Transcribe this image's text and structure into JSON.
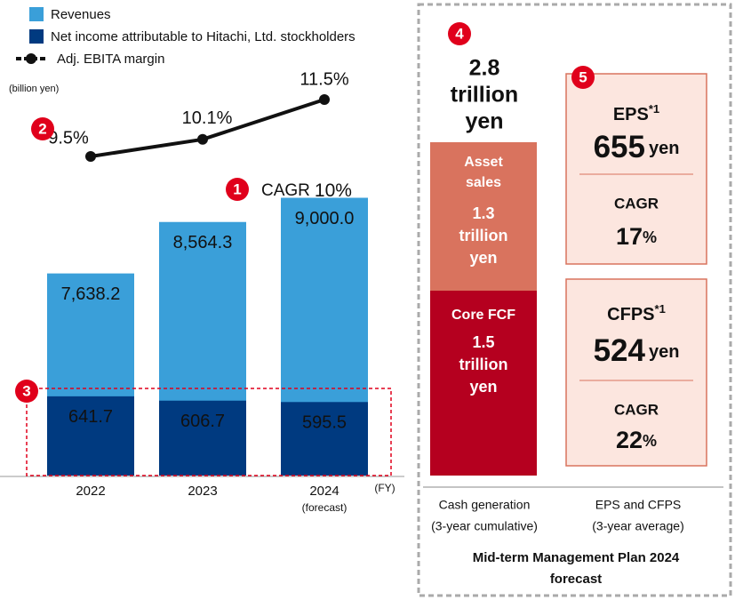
{
  "chart_data": [
    {
      "type": "bar",
      "categories": [
        "2022",
        "2023",
        "2024"
      ],
      "forecast_note": "(forecast)",
      "x_unit": "(FY)",
      "unit": "(billion yen)",
      "series": [
        {
          "name": "Revenues",
          "color": "#3a9fd9",
          "values": [
            7638.2,
            8564.3,
            9000.0
          ],
          "value_labels": [
            "7,638.2",
            "8,564.3",
            "9,000.0"
          ]
        },
        {
          "name": "Net income attributable to Hitachi, Ltd. stockholders",
          "color": "#003a80",
          "values": [
            641.7,
            606.7,
            595.5
          ],
          "axis": "y2"
        }
      ],
      "ylim": [
        4000,
        10000
      ],
      "y2lim": [
        0,
        2700
      ],
      "annotation": {
        "label": "CAGR",
        "value": "10%"
      }
    },
    {
      "type": "line",
      "series": [
        {
          "name": "Adj. EBITA margin",
          "color": "#111111",
          "values": [
            9.5,
            10.1,
            11.5
          ],
          "value_labels": [
            "9.5%",
            "10.1%",
            "11.5%"
          ]
        }
      ],
      "ylim": [
        9,
        12
      ]
    }
  ],
  "badges": [
    "1",
    "2",
    "3",
    "4",
    "5"
  ],
  "plan": {
    "title": [
      "Mid-term Management Plan 2024",
      "forecast"
    ],
    "cash": {
      "total": [
        "2.8",
        "trillion",
        "yen"
      ],
      "segments": [
        {
          "label": [
            "Asset",
            "sales"
          ],
          "amount": [
            "1.3",
            "trillion",
            "yen"
          ]
        },
        {
          "label": [
            "Core FCF"
          ],
          "amount": [
            "1.5",
            "trillion",
            "yen"
          ]
        }
      ],
      "caption": [
        "Cash generation",
        "(3-year cumulative)"
      ]
    },
    "per_share": {
      "caption": [
        "EPS and CFPS",
        "(3-year average)"
      ],
      "items": [
        {
          "label": "EPS",
          "note": "*1",
          "value": "655",
          "unit": "yen",
          "cagr_label": "CAGR",
          "cagr": "17",
          "cagr_unit": "%"
        },
        {
          "label": "CFPS",
          "note": "*1",
          "value": "524",
          "unit": "yen",
          "cagr_label": "CAGR",
          "cagr": "22",
          "cagr_unit": "%"
        }
      ]
    }
  }
}
